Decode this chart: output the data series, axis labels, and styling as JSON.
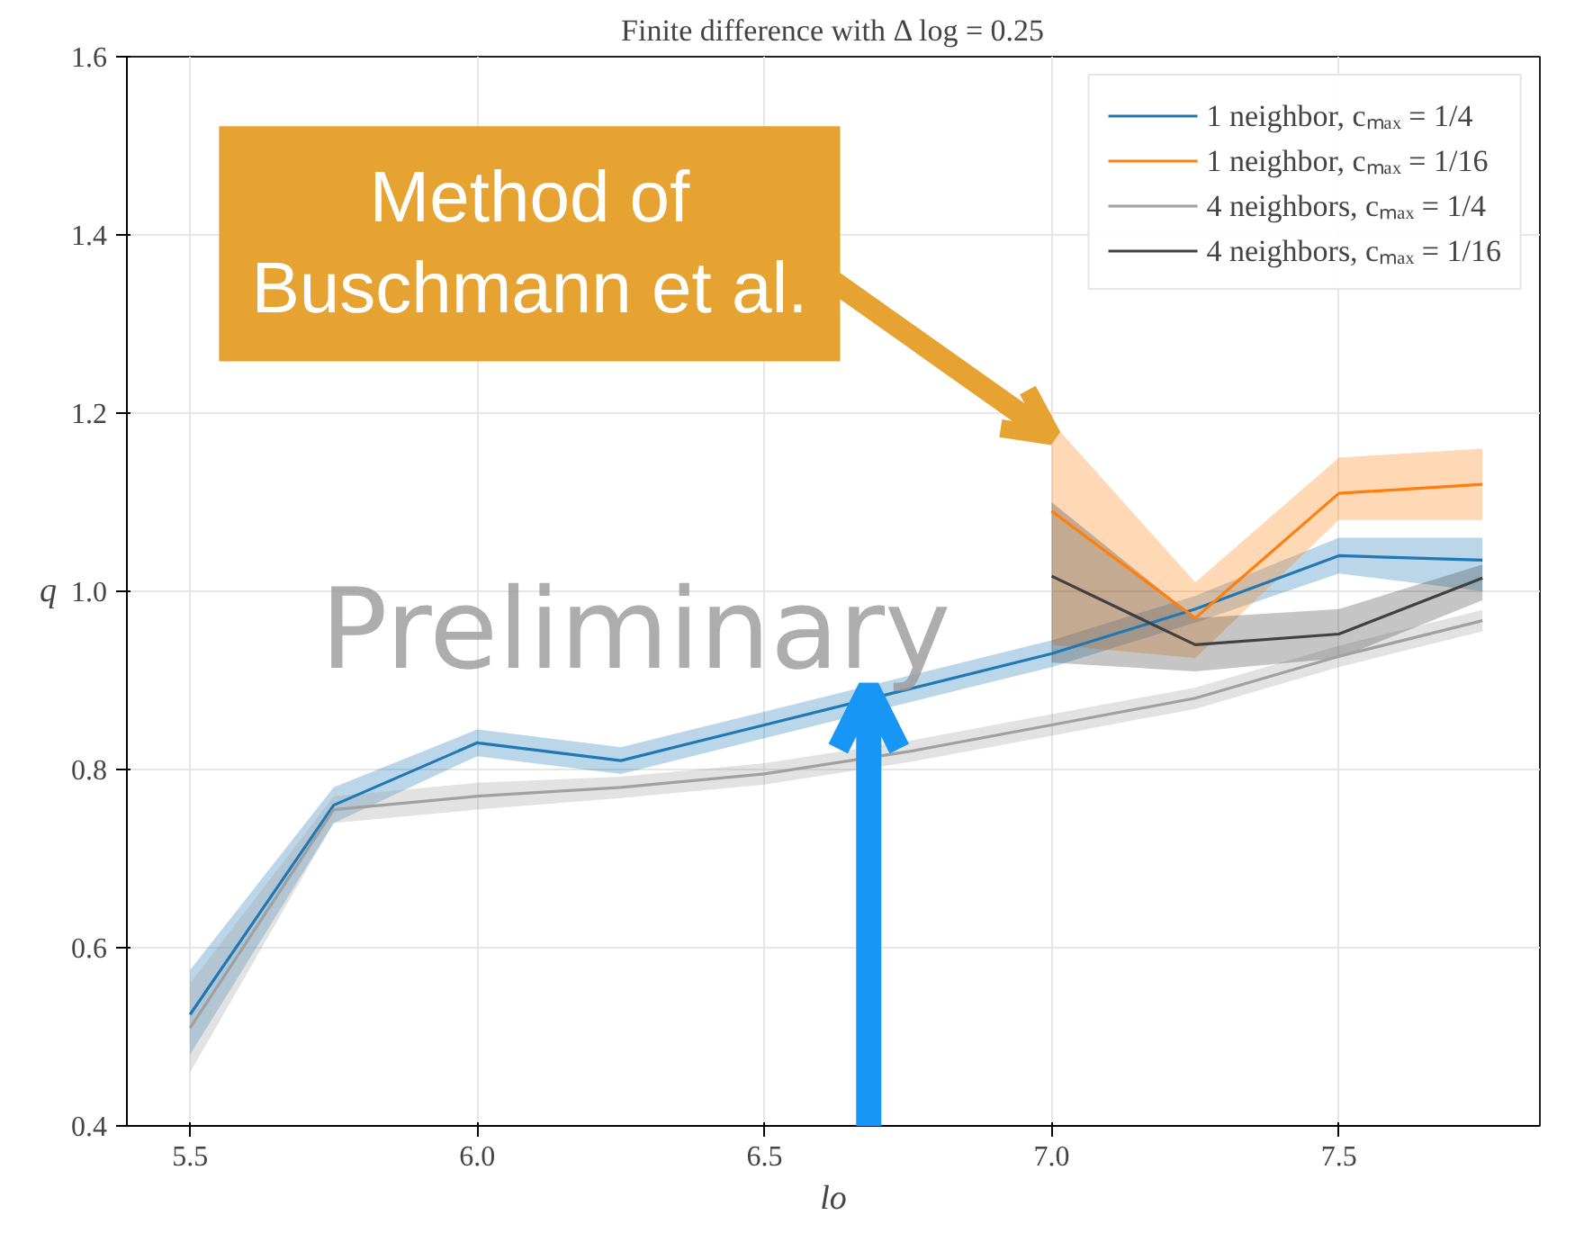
{
  "chart_data": {
    "type": "line",
    "title": "Finite difference with Δ log = 0.25",
    "xlabel": "lo",
    "ylabel": "q",
    "annotations": [
      "Method of\nBuschmann et al.",
      "Preliminary"
    ],
    "xlim": [
      5.39,
      7.85
    ],
    "ylim": [
      0.4,
      1.6
    ],
    "xticks": [
      5.5,
      {
        "value": 6,
        "label": "6.0"
      },
      6.5,
      {
        "value": 7,
        "label": "7.0"
      },
      7.5
    ],
    "yticks": [
      0.4,
      0.6,
      0.8,
      {
        "value": 1,
        "label": "1.0"
      },
      1.2,
      1.4,
      1.6
    ],
    "grid": true,
    "legend": "top right",
    "line_style": "solid",
    "marker": "none",
    "series": [
      {
        "name": "1 neighbor, cₘₐₓ = 1/4",
        "color": "#1f77b4",
        "x": [
          5.5,
          5.75,
          6.0,
          6.25,
          6.5,
          6.75,
          7.0,
          7.25,
          7.5,
          7.75
        ],
        "values": [
          0.525,
          0.76,
          0.83,
          0.81,
          0.85,
          0.89,
          0.93,
          0.98,
          1.04,
          1.035
        ],
        "lower": [
          0.48,
          0.74,
          0.815,
          0.795,
          0.835,
          0.875,
          0.915,
          0.965,
          1.02,
          1.0
        ],
        "upper": [
          0.575,
          0.78,
          0.845,
          0.825,
          0.865,
          0.905,
          0.945,
          0.995,
          1.06,
          1.06
        ]
      },
      {
        "name": "1 neighbor, cₘₐₓ = 1/16",
        "color": "#ff7f0e",
        "x": [
          7.0,
          7.25,
          7.5,
          7.75
        ],
        "values": [
          1.09,
          0.97,
          1.11,
          1.12
        ],
        "lower": [
          0.94,
          0.925,
          1.08,
          1.08
        ],
        "upper": [
          1.19,
          1.01,
          1.15,
          1.16
        ]
      },
      {
        "name": "4 neighbors, cₘₐₓ = 1/4",
        "color": "#a0a0a0",
        "x": [
          5.5,
          5.75,
          6.0,
          6.25,
          6.5,
          6.75,
          7.0,
          7.25,
          7.5,
          7.75
        ],
        "values": [
          0.51,
          0.755,
          0.77,
          0.78,
          0.795,
          0.82,
          0.85,
          0.88,
          0.927,
          0.967
        ],
        "lower": [
          0.46,
          0.74,
          0.755,
          0.768,
          0.783,
          0.808,
          0.838,
          0.868,
          0.915,
          0.955
        ],
        "upper": [
          0.56,
          0.77,
          0.785,
          0.792,
          0.807,
          0.832,
          0.862,
          0.892,
          0.939,
          0.979
        ]
      },
      {
        "name": "4 neighbors, cₘₐₓ = 1/16",
        "color": "#404040",
        "x": [
          7.0,
          7.25,
          7.5,
          7.75
        ],
        "values": [
          1.017,
          0.94,
          0.952,
          1.015
        ],
        "lower": [
          0.92,
          0.91,
          0.925,
          0.99
        ],
        "upper": [
          1.1,
          0.97,
          0.98,
          1.03
        ]
      }
    ]
  }
}
